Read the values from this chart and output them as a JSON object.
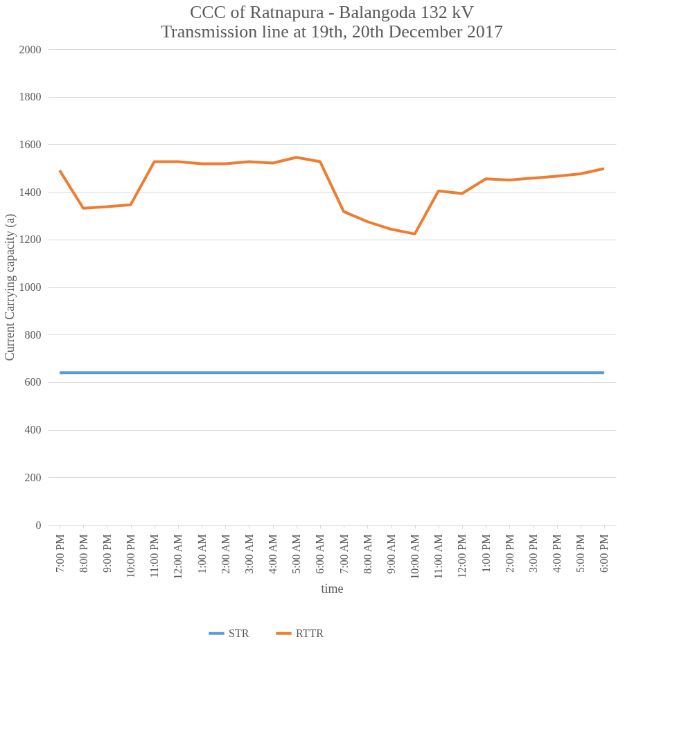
{
  "chart_data": {
    "type": "line",
    "title": [
      "CCC of Ratnapura - Balangoda 132 kV",
      "Transmission line at 19th, 20th December 2017"
    ],
    "xlabel": "time",
    "ylabel": "Current Carrying capacity (a)",
    "categories": [
      "7:00 PM",
      "8:00 PM",
      "9:00 PM",
      "10:00 PM",
      "11:00 PM",
      "12:00 AM",
      "1:00 AM",
      "2:00 AM",
      "3:00 AM",
      "4:00 AM",
      "5:00 AM",
      "6:00 AM",
      "7:00 AM",
      "8:00 AM",
      "9:00 AM",
      "10:00 AM",
      "11:00 AM",
      "12:00 PM",
      "1:00 PM",
      "2:00 PM",
      "3:00 PM",
      "4:00 PM",
      "5:00 PM",
      "6:00 PM"
    ],
    "series": [
      {
        "name": "STR",
        "color": "#5b9bd5",
        "values": [
          640,
          640,
          640,
          640,
          640,
          640,
          640,
          640,
          640,
          640,
          640,
          640,
          640,
          640,
          640,
          640,
          640,
          640,
          640,
          640,
          640,
          640,
          640,
          640
        ]
      },
      {
        "name": "RTTR",
        "color": "#ed7d31",
        "values": [
          1490,
          1331,
          1338,
          1346,
          1527,
          1527,
          1518,
          1518,
          1527,
          1521,
          1545,
          1527,
          1317,
          1275,
          1243,
          1223,
          1404,
          1393,
          1455,
          1450,
          1458,
          1466,
          1476,
          1498
        ]
      }
    ],
    "ylim": [
      0,
      2000
    ],
    "yticks": [
      0,
      200,
      400,
      600,
      800,
      1000,
      1200,
      1400,
      1600,
      1800,
      2000
    ],
    "grid": "y",
    "legend": "bottom",
    "marker": "none",
    "line_style": "solid"
  }
}
